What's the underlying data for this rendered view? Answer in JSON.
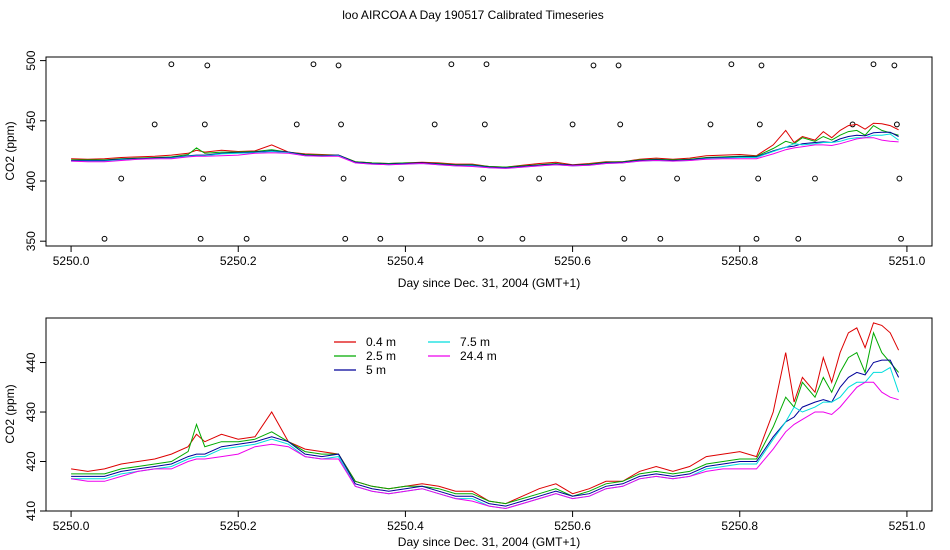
{
  "title": "loo AIRCOA A  Day 190517  Calibrated Timeseries",
  "chart_data": [
    {
      "type": "line",
      "panel": "top",
      "xlabel": "Day since Dec. 31, 2004 (GMT+1)",
      "ylabel": "CO2 (ppm)",
      "xlim": [
        5249.97,
        5251.03
      ],
      "ylim": [
        346,
        503
      ],
      "xticks": [
        5250.0,
        5250.2,
        5250.4,
        5250.6,
        5250.8,
        5251.0
      ],
      "xtick_labels": [
        "5250.0",
        "5250.2",
        "5250.4",
        "5250.6",
        "5250.8",
        "5251.0"
      ],
      "yticks": [
        350,
        400,
        450,
        500
      ],
      "ytick_labels": [
        "350",
        "400",
        "450",
        "500"
      ],
      "grid": false,
      "scatter_points": [
        {
          "x": 5250.04,
          "y": 352
        },
        {
          "x": 5250.06,
          "y": 402
        },
        {
          "x": 5250.1,
          "y": 447
        },
        {
          "x": 5250.12,
          "y": 497
        },
        {
          "x": 5250.155,
          "y": 352
        },
        {
          "x": 5250.158,
          "y": 402
        },
        {
          "x": 5250.16,
          "y": 447
        },
        {
          "x": 5250.163,
          "y": 496
        },
        {
          "x": 5250.21,
          "y": 352
        },
        {
          "x": 5250.23,
          "y": 402
        },
        {
          "x": 5250.27,
          "y": 447
        },
        {
          "x": 5250.29,
          "y": 497
        },
        {
          "x": 5250.32,
          "y": 496
        },
        {
          "x": 5250.323,
          "y": 447
        },
        {
          "x": 5250.326,
          "y": 402
        },
        {
          "x": 5250.328,
          "y": 352
        },
        {
          "x": 5250.37,
          "y": 352
        },
        {
          "x": 5250.395,
          "y": 402
        },
        {
          "x": 5250.435,
          "y": 447
        },
        {
          "x": 5250.455,
          "y": 497
        },
        {
          "x": 5250.49,
          "y": 352
        },
        {
          "x": 5250.493,
          "y": 402
        },
        {
          "x": 5250.495,
          "y": 447
        },
        {
          "x": 5250.497,
          "y": 497
        },
        {
          "x": 5250.54,
          "y": 352
        },
        {
          "x": 5250.56,
          "y": 402
        },
        {
          "x": 5250.6,
          "y": 447
        },
        {
          "x": 5250.625,
          "y": 496
        },
        {
          "x": 5250.655,
          "y": 496
        },
        {
          "x": 5250.657,
          "y": 447
        },
        {
          "x": 5250.66,
          "y": 402
        },
        {
          "x": 5250.662,
          "y": 352
        },
        {
          "x": 5250.705,
          "y": 352
        },
        {
          "x": 5250.725,
          "y": 402
        },
        {
          "x": 5250.765,
          "y": 447
        },
        {
          "x": 5250.79,
          "y": 497
        },
        {
          "x": 5250.82,
          "y": 352
        },
        {
          "x": 5250.822,
          "y": 402
        },
        {
          "x": 5250.824,
          "y": 447
        },
        {
          "x": 5250.826,
          "y": 496
        },
        {
          "x": 5250.87,
          "y": 352
        },
        {
          "x": 5250.89,
          "y": 402
        },
        {
          "x": 5250.935,
          "y": 447
        },
        {
          "x": 5250.96,
          "y": 497
        },
        {
          "x": 5250.985,
          "y": 496
        },
        {
          "x": 5250.988,
          "y": 447
        },
        {
          "x": 5250.991,
          "y": 402
        },
        {
          "x": 5250.993,
          "y": 352
        }
      ]
    },
    {
      "type": "line",
      "panel": "bottom",
      "xlabel": "Day since Dec. 31, 2004 (GMT+1)",
      "ylabel": "CO2 (ppm)",
      "xlim": [
        5249.97,
        5251.03
      ],
      "ylim": [
        410,
        449
      ],
      "xticks": [
        5250.0,
        5250.2,
        5250.4,
        5250.6,
        5250.8,
        5251.0
      ],
      "xtick_labels": [
        "5250.0",
        "5250.2",
        "5250.4",
        "5250.6",
        "5250.8",
        "5251.0"
      ],
      "yticks": [
        410,
        420,
        430,
        440
      ],
      "ytick_labels": [
        "410",
        "420",
        "430",
        "440"
      ],
      "grid": false,
      "legend_placement": "top-left",
      "x": [
        5250.0,
        5250.02,
        5250.04,
        5250.06,
        5250.08,
        5250.1,
        5250.12,
        5250.14,
        5250.15,
        5250.16,
        5250.18,
        5250.2,
        5250.22,
        5250.24,
        5250.26,
        5250.28,
        5250.3,
        5250.32,
        5250.34,
        5250.36,
        5250.38,
        5250.4,
        5250.42,
        5250.44,
        5250.46,
        5250.48,
        5250.5,
        5250.52,
        5250.54,
        5250.56,
        5250.58,
        5250.6,
        5250.62,
        5250.64,
        5250.66,
        5250.68,
        5250.7,
        5250.72,
        5250.74,
        5250.76,
        5250.78,
        5250.8,
        5250.82,
        5250.84,
        5250.855,
        5250.865,
        5250.875,
        5250.89,
        5250.9,
        5250.91,
        5250.92,
        5250.93,
        5250.94,
        5250.95,
        5250.96,
        5250.97,
        5250.98,
        5250.99
      ],
      "series": [
        {
          "name": "0.4 m",
          "color": "#dd0000",
          "values": [
            418.5,
            418,
            418.5,
            419.5,
            420,
            420.5,
            421.5,
            423,
            425.5,
            424,
            425.5,
            424.5,
            425,
            430,
            424,
            422.5,
            422,
            421.5,
            416,
            415,
            414.5,
            415,
            415.5,
            415,
            414,
            414,
            412,
            411.5,
            413,
            414.5,
            415.5,
            413.5,
            414.5,
            416,
            416,
            418,
            419,
            418,
            419,
            421,
            421.5,
            422,
            421,
            430,
            442,
            432,
            437,
            434,
            441,
            436,
            442,
            446,
            447,
            443,
            448,
            447.5,
            446,
            442.5
          ]
        },
        {
          "name": "2.5 m",
          "color": "#00aa00",
          "values": [
            417.5,
            417.5,
            417.5,
            418.5,
            419,
            419.5,
            420,
            422,
            427.5,
            423,
            424,
            424,
            424.5,
            426,
            424,
            422,
            421.5,
            421.5,
            416,
            415,
            414.5,
            415,
            415,
            414.5,
            413.5,
            413.5,
            412,
            411.5,
            412.5,
            413.5,
            414.5,
            413,
            414,
            415.5,
            416,
            417.5,
            418,
            417.5,
            418,
            419.5,
            420,
            420.5,
            420.5,
            427,
            433,
            431,
            436,
            433,
            437,
            434,
            438,
            441,
            442,
            438,
            446,
            442,
            440,
            438
          ]
        },
        {
          "name": "5 m",
          "color": "#000099",
          "values": [
            417,
            417,
            417,
            418,
            418.5,
            419,
            419.5,
            421,
            421.5,
            421.5,
            423,
            423.5,
            424,
            425,
            424,
            421.5,
            421,
            421.5,
            415.5,
            414.5,
            414,
            414.5,
            415,
            414,
            413,
            413,
            411.5,
            411,
            412,
            413,
            414,
            413,
            413.5,
            415,
            415.5,
            417,
            417.5,
            417,
            417.5,
            419,
            419.5,
            420,
            420,
            425,
            428,
            429,
            431,
            432,
            432.5,
            432,
            435,
            437,
            438,
            437.5,
            440,
            440.5,
            440.5,
            437
          ]
        },
        {
          "name": "7.5 m",
          "color": "#00dddd",
          "values": [
            416.5,
            416.5,
            416.5,
            417.5,
            418,
            418.5,
            419,
            420.5,
            421,
            421,
            422.5,
            423,
            423.5,
            424.5,
            423.5,
            421,
            420.5,
            421,
            415,
            414,
            413.5,
            414,
            414.5,
            413.5,
            412.5,
            412.5,
            411,
            410.5,
            411.5,
            412.5,
            413.5,
            412.5,
            413,
            414.5,
            415,
            416.5,
            417,
            416.5,
            417,
            418.5,
            419,
            419.5,
            419.5,
            424.5,
            428,
            431,
            430,
            431,
            432,
            432,
            433,
            435,
            436,
            436,
            438,
            438,
            439,
            434
          ]
        },
        {
          "name": "24.4 m",
          "color": "#ee00ee",
          "values": [
            416.5,
            416,
            416,
            417,
            418,
            418.5,
            418.5,
            420,
            420.5,
            420.5,
            421,
            421.5,
            423,
            423.5,
            423,
            421,
            420.5,
            420.5,
            415,
            414,
            413.5,
            414,
            414.5,
            413.5,
            412.5,
            412,
            411,
            410.5,
            411.5,
            412.5,
            413.5,
            412.5,
            413,
            414.5,
            415,
            416.5,
            417,
            416.5,
            417,
            418,
            418.5,
            418.5,
            418.5,
            422.5,
            426,
            427.5,
            428.5,
            430,
            430,
            429.5,
            431,
            433,
            435,
            436,
            436,
            434,
            433,
            432.5
          ]
        }
      ]
    }
  ]
}
